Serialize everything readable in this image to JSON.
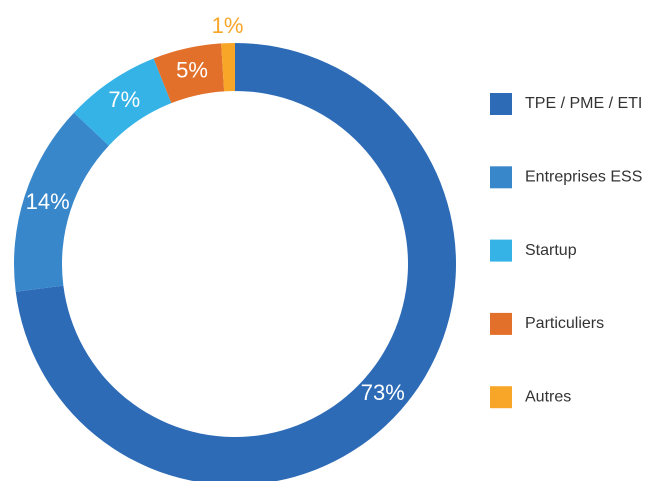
{
  "chart_data": {
    "type": "donut",
    "categories": [
      "TPE / PME / ETI",
      "Entreprises ESS",
      "Startup",
      "Particuliers",
      "Autres"
    ],
    "values": [
      73,
      14,
      7,
      5,
      1
    ],
    "value_labels": [
      "73%",
      "14%",
      "7%",
      "5%",
      "1%"
    ],
    "colors": [
      "#2d6bb7",
      "#3887cb",
      "#35b3e7",
      "#e2702a",
      "#f7a628"
    ],
    "legend": "right"
  }
}
